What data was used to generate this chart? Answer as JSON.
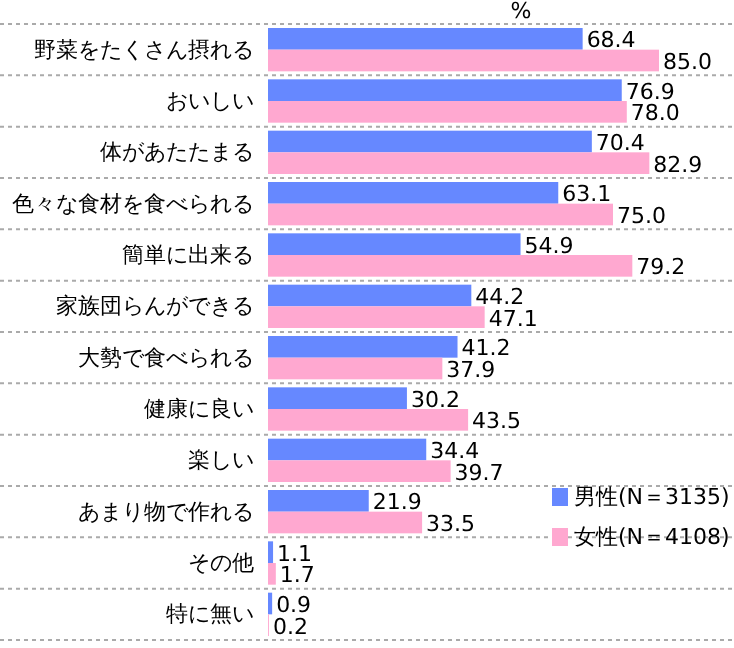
{
  "chart_data": {
    "type": "bar",
    "orientation": "horizontal",
    "xlabel": "%",
    "categories": [
      "野菜をたくさん摂れる",
      "おいしい",
      "体があたたまる",
      "色々な食材を食べられる",
      "簡単に出来る",
      "家族団らんができる",
      "大勢で食べられる",
      "健康に良い",
      "楽しい",
      "あまり物で作れる",
      "その他",
      "特に無い"
    ],
    "series": [
      {
        "name": "男性(N＝3135)",
        "color": "#6688ff",
        "values": [
          68.4,
          76.9,
          70.4,
          63.1,
          54.9,
          44.2,
          41.2,
          30.2,
          34.4,
          21.9,
          1.1,
          0.9
        ],
        "value_labels": [
          "68.4",
          "76.9",
          "70.4",
          "63.1",
          "54.9",
          "44.2",
          "41.2",
          "30.2",
          "34.4",
          "21.9",
          "1.1",
          "0.9"
        ]
      },
      {
        "name": "女性(N＝4108)",
        "color": "#ffa8d0",
        "values": [
          85.0,
          78.0,
          82.9,
          75.0,
          79.2,
          47.1,
          37.9,
          43.5,
          39.7,
          33.5,
          1.7,
          0.2
        ],
        "value_labels": [
          "85.0",
          "78.0",
          "82.9",
          "75.0",
          "79.2",
          "47.1",
          "37.9",
          "43.5",
          "39.7",
          "33.5",
          "1.7",
          "0.2"
        ]
      }
    ],
    "xlim": [
      0,
      100
    ],
    "tick_labels": "y",
    "legend": "right"
  }
}
